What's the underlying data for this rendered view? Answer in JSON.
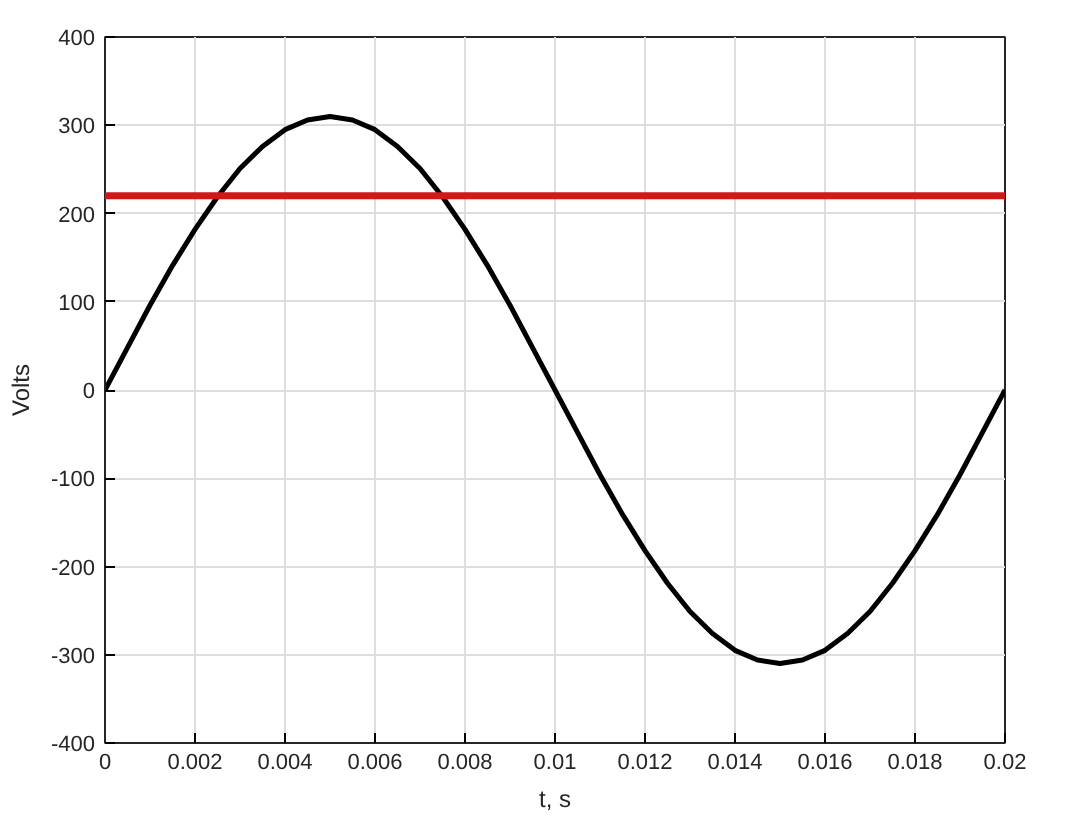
{
  "chart_data": {
    "type": "line",
    "xlabel": "t, s",
    "ylabel": "Volts",
    "x": [
      0,
      0.0005,
      0.001,
      0.0015,
      0.002,
      0.0025,
      0.003,
      0.0035,
      0.004,
      0.0045,
      0.005,
      0.0055,
      0.006,
      0.0065,
      0.007,
      0.0075,
      0.008,
      0.0085,
      0.009,
      0.0095,
      0.01,
      0.0105,
      0.011,
      0.0115,
      0.012,
      0.0125,
      0.013,
      0.0135,
      0.014,
      0.0145,
      0.015,
      0.0155,
      0.016,
      0.0165,
      0.017,
      0.0175,
      0.018,
      0.0185,
      0.019,
      0.0195,
      0.02
    ],
    "series": [
      {
        "color": "#000000",
        "values": [
          0,
          48,
          96,
          141,
          182,
          219,
          251,
          276,
          295,
          306,
          310,
          306,
          295,
          276,
          251,
          219,
          182,
          141,
          96,
          48,
          0,
          -48,
          -96,
          -141,
          -182,
          -219,
          -251,
          -276,
          -295,
          -306,
          -310,
          -306,
          -295,
          -276,
          -251,
          -219,
          -182,
          -141,
          -96,
          -48,
          0
        ]
      }
    ],
    "xlim": [
      0,
      0.02
    ],
    "ylim": [
      -400,
      400
    ],
    "xticks": [
      0,
      0.002,
      0.004,
      0.006,
      0.008,
      0.01,
      0.012,
      0.014,
      0.016,
      0.018,
      0.02
    ],
    "yticks": [
      -400,
      -300,
      -200,
      -100,
      0,
      100,
      200,
      300,
      400
    ],
    "ref_lines": [
      {
        "axis": "y",
        "value": 220,
        "color": "#d01818"
      }
    ],
    "grid": true,
    "line_style": "solid"
  }
}
